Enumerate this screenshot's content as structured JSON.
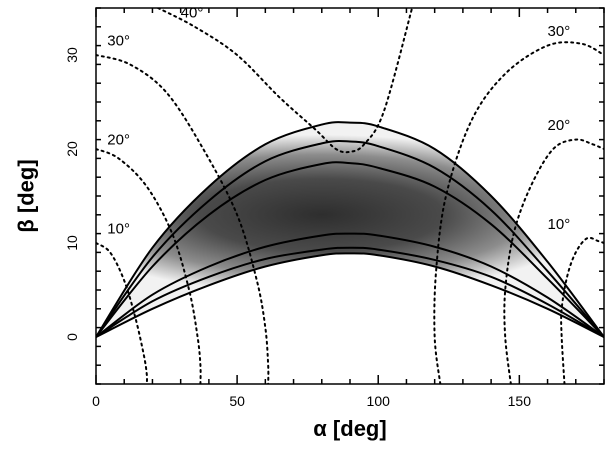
{
  "chart_data": {
    "type": "line",
    "xlabel": "α [deg]",
    "ylabel": "β [deg]",
    "xlim": [
      0,
      180
    ],
    "ylim": [
      -5,
      35
    ],
    "x_ticks": [
      0,
      50,
      100,
      150
    ],
    "y_ticks": [
      0,
      10,
      20,
      30
    ],
    "grid": false,
    "legend": "none",
    "shaded_region": {
      "description": "probability density (grey scale)",
      "x": [
        0,
        20,
        40,
        60,
        80,
        90,
        100,
        120,
        140,
        160,
        180
      ],
      "lower": [
        0,
        3.0,
        5.5,
        7.5,
        8.7,
        8.9,
        8.7,
        7.5,
        5.5,
        3.0,
        0
      ],
      "upper": [
        0,
        9.5,
        16.0,
        20.5,
        22.6,
        22.8,
        22.4,
        20.0,
        15.0,
        8.0,
        0
      ],
      "peak": {
        "x": 80,
        "y": 13
      }
    },
    "solid_curves": [
      {
        "x": [
          0,
          20,
          40,
          60,
          80,
          90,
          100,
          120,
          140,
          160,
          180
        ],
        "y": [
          0,
          9.5,
          16.0,
          20.5,
          22.6,
          22.8,
          22.4,
          20.0,
          15.0,
          8.0,
          0
        ]
      },
      {
        "x": [
          0,
          20,
          40,
          60,
          80,
          90,
          100,
          120,
          140,
          160,
          180
        ],
        "y": [
          0,
          8.5,
          14.5,
          18.7,
          20.6,
          20.8,
          20.3,
          18.0,
          13.5,
          7.0,
          0
        ]
      },
      {
        "x": [
          0,
          20,
          40,
          60,
          80,
          90,
          100,
          120,
          140,
          160,
          180
        ],
        "y": [
          0,
          7.5,
          13.0,
          16.7,
          18.4,
          18.5,
          18.0,
          16.0,
          12.0,
          6.2,
          0
        ]
      },
      {
        "x": [
          0,
          20,
          40,
          60,
          80,
          90,
          100,
          120,
          140,
          160,
          180
        ],
        "y": [
          0,
          4.5,
          7.5,
          9.6,
          10.8,
          11.0,
          10.8,
          9.6,
          7.5,
          4.2,
          0
        ]
      },
      {
        "x": [
          0,
          20,
          40,
          60,
          80,
          90,
          100,
          120,
          140,
          160,
          180
        ],
        "y": [
          0,
          3.8,
          6.4,
          8.3,
          9.3,
          9.5,
          9.3,
          8.2,
          6.4,
          3.5,
          0
        ]
      },
      {
        "x": [
          0,
          20,
          40,
          60,
          80,
          90,
          100,
          120,
          140,
          160,
          180
        ],
        "y": [
          0,
          3.0,
          5.5,
          7.5,
          8.7,
          8.9,
          8.7,
          7.5,
          5.5,
          3.0,
          0
        ]
      }
    ],
    "dotted_contours": [
      {
        "label": "10°",
        "label_pos": {
          "x": 4,
          "y": 11
        },
        "x": [
          0,
          5,
          10,
          14,
          17,
          18,
          18
        ],
        "y": [
          10,
          9,
          6,
          2,
          -2,
          -4,
          -5
        ]
      },
      {
        "label": "20°",
        "label_pos": {
          "x": 4,
          "y": 20.5
        },
        "x": [
          0,
          8,
          18,
          27,
          33,
          36,
          37,
          37
        ],
        "y": [
          20,
          19,
          16,
          11,
          5,
          0,
          -3,
          -5
        ]
      },
      {
        "label": "30°",
        "label_pos": {
          "x": 4,
          "y": 31
        },
        "x": [
          0,
          12,
          25,
          38,
          50,
          57,
          60,
          61,
          61
        ],
        "y": [
          30,
          29,
          26,
          20,
          13,
          6,
          1,
          -3,
          -5
        ]
      },
      {
        "label": "40°",
        "label_pos": {
          "x": 30,
          "y": 34
        },
        "x": [
          22,
          35,
          50,
          65,
          78,
          85,
          90,
          95,
          102,
          112
        ],
        "y": [
          35,
          33,
          30,
          25.5,
          22,
          20,
          19.7,
          20.5,
          24,
          35
        ]
      },
      {
        "label": "30°",
        "label_pos": {
          "x": 160,
          "y": 32
        },
        "x": [
          122,
          120,
          120.5,
          124,
          133,
          145,
          160,
          172,
          180
        ],
        "y": [
          -5,
          0,
          7,
          15,
          23,
          28,
          31,
          31.2,
          30
        ]
      },
      {
        "label": "20°",
        "label_pos": {
          "x": 160,
          "y": 22
        },
        "x": [
          147,
          145,
          145,
          148,
          154,
          162,
          170,
          176,
          180
        ],
        "y": [
          -5,
          0,
          5,
          11,
          16,
          20,
          21,
          20.5,
          20
        ]
      },
      {
        "label": "10°",
        "label_pos": {
          "x": 160,
          "y": 11.5
        },
        "x": [
          166,
          165,
          165,
          167,
          170,
          174,
          178,
          180
        ],
        "y": [
          -5,
          0,
          3,
          6.5,
          9,
          10.5,
          10.2,
          10
        ]
      }
    ]
  }
}
